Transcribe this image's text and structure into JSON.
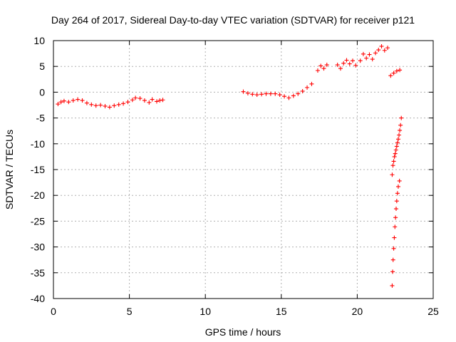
{
  "chart_data": {
    "type": "scatter",
    "title": "Day 264 of 2017, Sidereal Day-to-day VTEC variation (SDTVAR) for receiver p121",
    "xlabel": "GPS time / hours",
    "ylabel": "SDTVAR / TECUs",
    "xlim": [
      0,
      25
    ],
    "ylim": [
      -40,
      10
    ],
    "xticks": [
      0,
      5,
      10,
      15,
      20,
      25
    ],
    "yticks": [
      10,
      5,
      0,
      -5,
      -10,
      -15,
      -20,
      -25,
      -30,
      -35,
      -40
    ],
    "grid": true,
    "marker": "plus",
    "color": "#ff0000",
    "series": [
      {
        "points": [
          [
            0.3,
            -2.3
          ],
          [
            0.5,
            -1.9
          ],
          [
            0.7,
            -1.7
          ],
          [
            1.0,
            -1.9
          ],
          [
            1.3,
            -1.6
          ],
          [
            1.6,
            -1.4
          ],
          [
            1.9,
            -1.6
          ],
          [
            2.2,
            -2.1
          ],
          [
            2.5,
            -2.4
          ],
          [
            2.8,
            -2.6
          ],
          [
            3.1,
            -2.5
          ],
          [
            3.4,
            -2.7
          ],
          [
            3.7,
            -2.9
          ],
          [
            4.0,
            -2.6
          ],
          [
            4.3,
            -2.4
          ],
          [
            4.6,
            -2.2
          ],
          [
            4.9,
            -1.9
          ],
          [
            5.2,
            -1.5
          ],
          [
            5.4,
            -1.1
          ],
          [
            5.7,
            -1.2
          ],
          [
            6.0,
            -1.6
          ],
          [
            6.3,
            -2.0
          ],
          [
            6.5,
            -1.4
          ],
          [
            6.8,
            -1.8
          ],
          [
            7.0,
            -1.6
          ],
          [
            7.2,
            -1.5
          ],
          [
            12.5,
            0.1
          ],
          [
            12.8,
            -0.2
          ],
          [
            13.1,
            -0.4
          ],
          [
            13.4,
            -0.5
          ],
          [
            13.7,
            -0.4
          ],
          [
            14.0,
            -0.3
          ],
          [
            14.3,
            -0.3
          ],
          [
            14.6,
            -0.3
          ],
          [
            14.9,
            -0.5
          ],
          [
            15.2,
            -0.8
          ],
          [
            15.5,
            -1.1
          ],
          [
            15.8,
            -0.7
          ],
          [
            16.1,
            -0.3
          ],
          [
            16.4,
            0.2
          ],
          [
            16.7,
            0.9
          ],
          [
            17.0,
            1.6
          ],
          [
            17.4,
            4.2
          ],
          [
            17.6,
            5.1
          ],
          [
            17.8,
            4.6
          ],
          [
            18.0,
            5.3
          ],
          [
            18.7,
            5.3
          ],
          [
            18.9,
            4.6
          ],
          [
            19.1,
            5.6
          ],
          [
            19.3,
            6.2
          ],
          [
            19.5,
            5.5
          ],
          [
            19.7,
            6.1
          ],
          [
            19.9,
            5.2
          ],
          [
            20.2,
            6.1
          ],
          [
            20.4,
            7.4
          ],
          [
            20.6,
            6.6
          ],
          [
            20.8,
            7.3
          ],
          [
            21.0,
            6.4
          ],
          [
            21.2,
            7.6
          ],
          [
            21.4,
            8.2
          ],
          [
            21.6,
            8.9
          ],
          [
            21.8,
            8.1
          ],
          [
            22.0,
            8.6
          ],
          [
            22.2,
            3.2
          ],
          [
            22.4,
            3.7
          ],
          [
            22.6,
            4.1
          ],
          [
            22.8,
            4.3
          ],
          [
            22.3,
            -16.0
          ],
          [
            22.35,
            -14.2
          ],
          [
            22.4,
            -13.4
          ],
          [
            22.45,
            -12.5
          ],
          [
            22.5,
            -11.9
          ],
          [
            22.55,
            -11.2
          ],
          [
            22.6,
            -10.5
          ],
          [
            22.65,
            -9.8
          ],
          [
            22.7,
            -9.1
          ],
          [
            22.75,
            -8.3
          ],
          [
            22.8,
            -7.4
          ],
          [
            22.85,
            -6.4
          ],
          [
            22.9,
            -5.0
          ],
          [
            22.3,
            -37.5
          ],
          [
            22.33,
            -34.8
          ],
          [
            22.36,
            -32.5
          ],
          [
            22.4,
            -30.3
          ],
          [
            22.44,
            -28.2
          ],
          [
            22.48,
            -26.1
          ],
          [
            22.52,
            -24.3
          ],
          [
            22.56,
            -22.6
          ],
          [
            22.6,
            -21.1
          ],
          [
            22.65,
            -19.6
          ],
          [
            22.7,
            -18.3
          ],
          [
            22.78,
            -17.2
          ]
        ]
      }
    ]
  }
}
